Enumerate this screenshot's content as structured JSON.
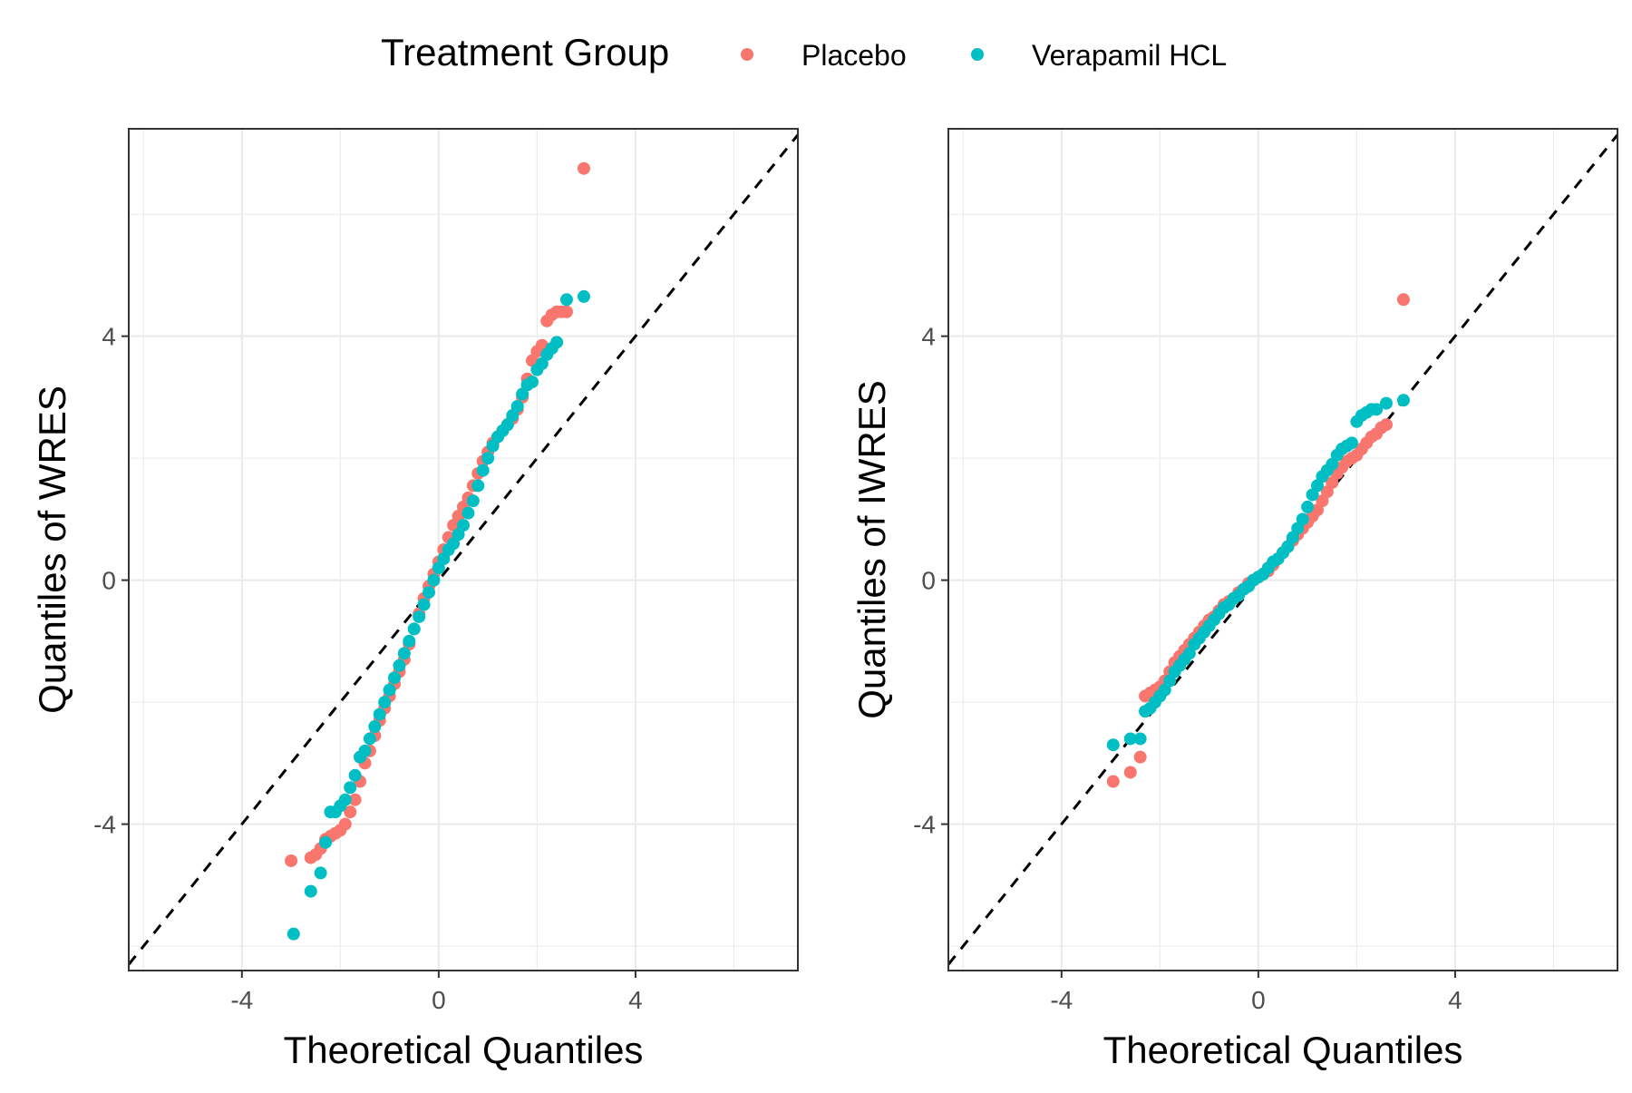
{
  "legend": {
    "title": "Treatment Group",
    "placement": "top",
    "entries": [
      {
        "label": "Placebo",
        "color": "#F8766D"
      },
      {
        "label": "Verapamil HCL",
        "color": "#00BFC4"
      }
    ]
  },
  "chart_data": [
    {
      "type": "scatter",
      "title": "",
      "xlabel": "Theoretical Quantiles",
      "ylabel": "Quantiles of WRES",
      "xlim": [
        -6.3,
        7.3
      ],
      "ylim": [
        -6.4,
        7.4
      ],
      "xticks": [
        -4,
        0,
        4
      ],
      "yticks": [
        -4,
        0,
        4
      ],
      "grid": true,
      "reference_line": {
        "type": "identity",
        "style": "dashed"
      },
      "series": [
        {
          "name": "Placebo",
          "color": "#F8766D",
          "points": [
            [
              -3.0,
              -4.6
            ],
            [
              -2.6,
              -4.55
            ],
            [
              -2.5,
              -4.5
            ],
            [
              -2.4,
              -4.4
            ],
            [
              -2.3,
              -4.25
            ],
            [
              -2.2,
              -4.2
            ],
            [
              -2.1,
              -4.15
            ],
            [
              -2.0,
              -4.1
            ],
            [
              -1.9,
              -4.0
            ],
            [
              -1.8,
              -3.8
            ],
            [
              -1.7,
              -3.6
            ],
            [
              -1.6,
              -3.3
            ],
            [
              -1.5,
              -3.0
            ],
            [
              -1.4,
              -2.8
            ],
            [
              -1.3,
              -2.55
            ],
            [
              -1.2,
              -2.3
            ],
            [
              -1.1,
              -2.1
            ],
            [
              -1.0,
              -1.9
            ],
            [
              -0.9,
              -1.7
            ],
            [
              -0.8,
              -1.5
            ],
            [
              -0.7,
              -1.3
            ],
            [
              -0.6,
              -1.05
            ],
            [
              -0.5,
              -0.8
            ],
            [
              -0.4,
              -0.55
            ],
            [
              -0.3,
              -0.3
            ],
            [
              -0.2,
              -0.1
            ],
            [
              -0.1,
              0.1
            ],
            [
              0.0,
              0.3
            ],
            [
              0.1,
              0.5
            ],
            [
              0.2,
              0.7
            ],
            [
              0.3,
              0.9
            ],
            [
              0.4,
              1.05
            ],
            [
              0.5,
              1.2
            ],
            [
              0.6,
              1.35
            ],
            [
              0.7,
              1.55
            ],
            [
              0.8,
              1.75
            ],
            [
              0.9,
              1.95
            ],
            [
              1.0,
              2.1
            ],
            [
              1.1,
              2.25
            ],
            [
              1.2,
              2.35
            ],
            [
              1.3,
              2.45
            ],
            [
              1.4,
              2.55
            ],
            [
              1.5,
              2.65
            ],
            [
              1.6,
              2.8
            ],
            [
              1.7,
              3.0
            ],
            [
              1.8,
              3.3
            ],
            [
              1.9,
              3.6
            ],
            [
              2.0,
              3.75
            ],
            [
              2.1,
              3.85
            ],
            [
              2.2,
              4.25
            ],
            [
              2.3,
              4.35
            ],
            [
              2.4,
              4.4
            ],
            [
              2.5,
              4.4
            ],
            [
              2.6,
              4.4
            ],
            [
              2.95,
              6.75
            ]
          ]
        },
        {
          "name": "Verapamil HCL",
          "color": "#00BFC4",
          "points": [
            [
              -2.95,
              -5.8
            ],
            [
              -2.6,
              -5.1
            ],
            [
              -2.4,
              -4.8
            ],
            [
              -2.3,
              -4.3
            ],
            [
              -2.2,
              -3.8
            ],
            [
              -2.1,
              -3.8
            ],
            [
              -2.0,
              -3.7
            ],
            [
              -1.9,
              -3.6
            ],
            [
              -1.8,
              -3.4
            ],
            [
              -1.7,
              -3.2
            ],
            [
              -1.6,
              -2.9
            ],
            [
              -1.5,
              -2.8
            ],
            [
              -1.4,
              -2.6
            ],
            [
              -1.3,
              -2.4
            ],
            [
              -1.2,
              -2.2
            ],
            [
              -1.1,
              -2.0
            ],
            [
              -1.0,
              -1.8
            ],
            [
              -0.9,
              -1.6
            ],
            [
              -0.8,
              -1.4
            ],
            [
              -0.7,
              -1.2
            ],
            [
              -0.6,
              -1.0
            ],
            [
              -0.5,
              -0.8
            ],
            [
              -0.4,
              -0.6
            ],
            [
              -0.3,
              -0.4
            ],
            [
              -0.2,
              -0.2
            ],
            [
              -0.1,
              0.0
            ],
            [
              0.0,
              0.2
            ],
            [
              0.1,
              0.35
            ],
            [
              0.2,
              0.5
            ],
            [
              0.3,
              0.6
            ],
            [
              0.4,
              0.75
            ],
            [
              0.5,
              0.9
            ],
            [
              0.6,
              1.1
            ],
            [
              0.7,
              1.3
            ],
            [
              0.8,
              1.55
            ],
            [
              0.9,
              1.8
            ],
            [
              1.0,
              2.0
            ],
            [
              1.1,
              2.2
            ],
            [
              1.2,
              2.35
            ],
            [
              1.3,
              2.45
            ],
            [
              1.4,
              2.55
            ],
            [
              1.5,
              2.7
            ],
            [
              1.6,
              2.85
            ],
            [
              1.7,
              3.05
            ],
            [
              1.8,
              3.2
            ],
            [
              1.9,
              3.25
            ],
            [
              2.0,
              3.45
            ],
            [
              2.1,
              3.55
            ],
            [
              2.2,
              3.7
            ],
            [
              2.3,
              3.8
            ],
            [
              2.4,
              3.9
            ],
            [
              2.6,
              4.6
            ],
            [
              2.95,
              4.65
            ]
          ]
        }
      ]
    },
    {
      "type": "scatter",
      "title": "",
      "xlabel": "Theoretical Quantiles",
      "ylabel": "Quantiles of IWRES",
      "xlim": [
        -6.3,
        7.3
      ],
      "ylim": [
        -6.4,
        7.4
      ],
      "xticks": [
        -4,
        0,
        4
      ],
      "yticks": [
        -4,
        0,
        4
      ],
      "grid": true,
      "reference_line": {
        "type": "identity",
        "style": "dashed"
      },
      "series": [
        {
          "name": "Placebo",
          "color": "#F8766D",
          "points": [
            [
              -2.95,
              -3.3
            ],
            [
              -2.6,
              -3.15
            ],
            [
              -2.4,
              -2.9
            ],
            [
              -2.3,
              -1.9
            ],
            [
              -2.2,
              -1.85
            ],
            [
              -2.1,
              -1.8
            ],
            [
              -2.0,
              -1.75
            ],
            [
              -1.9,
              -1.65
            ],
            [
              -1.8,
              -1.5
            ],
            [
              -1.7,
              -1.35
            ],
            [
              -1.6,
              -1.25
            ],
            [
              -1.5,
              -1.15
            ],
            [
              -1.4,
              -1.05
            ],
            [
              -1.3,
              -0.95
            ],
            [
              -1.2,
              -0.85
            ],
            [
              -1.1,
              -0.75
            ],
            [
              -1.0,
              -0.65
            ],
            [
              -0.9,
              -0.6
            ],
            [
              -0.8,
              -0.5
            ],
            [
              -0.7,
              -0.4
            ],
            [
              -0.6,
              -0.35
            ],
            [
              -0.5,
              -0.3
            ],
            [
              -0.4,
              -0.2
            ],
            [
              -0.3,
              -0.15
            ],
            [
              -0.2,
              -0.05
            ],
            [
              -0.1,
              0.0
            ],
            [
              0.0,
              0.05
            ],
            [
              0.1,
              0.1
            ],
            [
              0.2,
              0.15
            ],
            [
              0.3,
              0.25
            ],
            [
              0.4,
              0.35
            ],
            [
              0.5,
              0.45
            ],
            [
              0.6,
              0.55
            ],
            [
              0.7,
              0.65
            ],
            [
              0.8,
              0.75
            ],
            [
              0.9,
              0.85
            ],
            [
              1.0,
              0.95
            ],
            [
              1.1,
              1.05
            ],
            [
              1.2,
              1.15
            ],
            [
              1.3,
              1.3
            ],
            [
              1.4,
              1.45
            ],
            [
              1.5,
              1.6
            ],
            [
              1.6,
              1.75
            ],
            [
              1.7,
              1.85
            ],
            [
              1.8,
              1.95
            ],
            [
              1.9,
              2.0
            ],
            [
              2.0,
              2.05
            ],
            [
              2.1,
              2.15
            ],
            [
              2.2,
              2.25
            ],
            [
              2.3,
              2.35
            ],
            [
              2.4,
              2.4
            ],
            [
              2.5,
              2.5
            ],
            [
              2.6,
              2.55
            ],
            [
              2.95,
              4.6
            ]
          ]
        },
        {
          "name": "Verapamil HCL",
          "color": "#00BFC4",
          "points": [
            [
              -2.95,
              -2.7
            ],
            [
              -2.6,
              -2.6
            ],
            [
              -2.4,
              -2.6
            ],
            [
              -2.3,
              -2.15
            ],
            [
              -2.2,
              -2.1
            ],
            [
              -2.1,
              -2.0
            ],
            [
              -2.0,
              -1.9
            ],
            [
              -1.9,
              -1.8
            ],
            [
              -1.8,
              -1.65
            ],
            [
              -1.7,
              -1.5
            ],
            [
              -1.6,
              -1.4
            ],
            [
              -1.5,
              -1.3
            ],
            [
              -1.4,
              -1.2
            ],
            [
              -1.3,
              -1.05
            ],
            [
              -1.2,
              -0.95
            ],
            [
              -1.1,
              -0.85
            ],
            [
              -1.0,
              -0.75
            ],
            [
              -0.9,
              -0.65
            ],
            [
              -0.8,
              -0.55
            ],
            [
              -0.7,
              -0.45
            ],
            [
              -0.6,
              -0.4
            ],
            [
              -0.5,
              -0.3
            ],
            [
              -0.4,
              -0.25
            ],
            [
              -0.3,
              -0.15
            ],
            [
              -0.2,
              -0.1
            ],
            [
              -0.1,
              0.0
            ],
            [
              0.0,
              0.05
            ],
            [
              0.1,
              0.1
            ],
            [
              0.2,
              0.2
            ],
            [
              0.3,
              0.3
            ],
            [
              0.4,
              0.35
            ],
            [
              0.5,
              0.45
            ],
            [
              0.6,
              0.55
            ],
            [
              0.7,
              0.7
            ],
            [
              0.8,
              0.85
            ],
            [
              0.9,
              1.0
            ],
            [
              1.0,
              1.2
            ],
            [
              1.1,
              1.4
            ],
            [
              1.2,
              1.55
            ],
            [
              1.3,
              1.7
            ],
            [
              1.4,
              1.8
            ],
            [
              1.5,
              1.9
            ],
            [
              1.6,
              2.05
            ],
            [
              1.7,
              2.15
            ],
            [
              1.8,
              2.2
            ],
            [
              1.9,
              2.25
            ],
            [
              2.0,
              2.6
            ],
            [
              2.1,
              2.7
            ],
            [
              2.2,
              2.75
            ],
            [
              2.3,
              2.8
            ],
            [
              2.4,
              2.8
            ],
            [
              2.6,
              2.9
            ],
            [
              2.95,
              2.95
            ]
          ]
        }
      ]
    }
  ]
}
